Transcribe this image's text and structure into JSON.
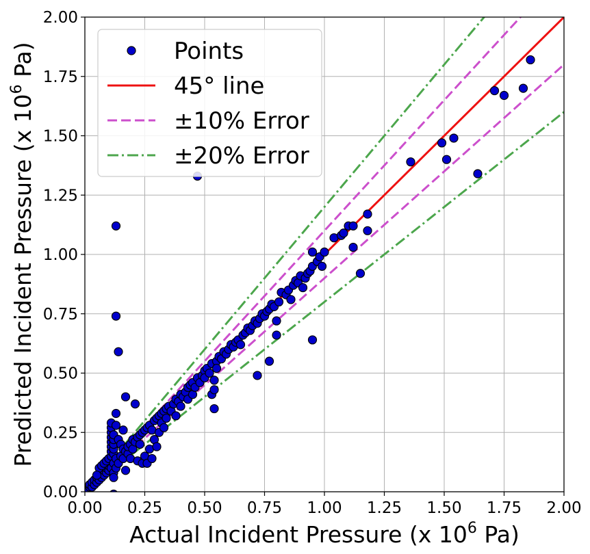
{
  "chart_data": {
    "type": "scatter",
    "title": "",
    "xlabel": "Actual Incident Pressure (x 10",
    "xlabel_exp": "6",
    "xlabel_unit": " Pa)",
    "ylabel": "Predicted Incident Pressure (x 10",
    "ylabel_exp": "6",
    "ylabel_unit": " Pa)",
    "xlim": [
      0,
      2
    ],
    "ylim": [
      0,
      2
    ],
    "grid": true,
    "legend_position": "top-left",
    "xticks": [
      "0.00",
      "0.25",
      "0.50",
      "0.75",
      "1.00",
      "1.25",
      "1.50",
      "1.75",
      "2.00"
    ],
    "yticks": [
      "0.00",
      "0.25",
      "0.50",
      "0.75",
      "1.00",
      "1.25",
      "1.50",
      "1.75",
      "2.00"
    ],
    "legend": [
      {
        "label": "Points",
        "kind": "marker",
        "color": "#0000cc"
      },
      {
        "label": "45° line",
        "kind": "solid",
        "color": "#ee1111"
      },
      {
        "label": "±10% Error",
        "kind": "dashed",
        "color": "#cc4fcc"
      },
      {
        "label": "±20% Error",
        "kind": "dashdot",
        "color": "#4ca64c"
      }
    ],
    "reference_lines": [
      {
        "name": "45° line",
        "slope": 1.0,
        "color": "#ee1111",
        "style": "solid"
      },
      {
        "name": "±10% Error",
        "slope": 1.1,
        "color": "#cc4fcc",
        "style": "dashed"
      },
      {
        "name": "±10% Error",
        "slope": 0.9,
        "color": "#cc4fcc",
        "style": "dashed"
      },
      {
        "name": "±20% Error",
        "slope": 1.2,
        "color": "#4ca64c",
        "style": "dashdot"
      },
      {
        "name": "±20% Error",
        "slope": 0.8,
        "color": "#4ca64c",
        "style": "dashdot"
      }
    ],
    "points": [
      [
        0.01,
        0.01
      ],
      [
        0.02,
        0.02
      ],
      [
        0.02,
        0.03
      ],
      [
        0.03,
        0.02
      ],
      [
        0.03,
        0.04
      ],
      [
        0.04,
        0.03
      ],
      [
        0.04,
        0.05
      ],
      [
        0.05,
        0.04
      ],
      [
        0.05,
        0.06
      ],
      [
        0.06,
        0.05
      ],
      [
        0.06,
        0.07
      ],
      [
        0.07,
        0.06
      ],
      [
        0.07,
        0.08
      ],
      [
        0.08,
        0.07
      ],
      [
        0.08,
        0.09
      ],
      [
        0.09,
        0.08
      ],
      [
        0.09,
        0.1
      ],
      [
        0.1,
        0.09
      ],
      [
        0.1,
        0.11
      ],
      [
        0.11,
        0.1
      ],
      [
        0.06,
        0.1
      ],
      [
        0.07,
        0.11
      ],
      [
        0.08,
        0.12
      ],
      [
        0.05,
        0.07
      ],
      [
        0.09,
        0.13
      ],
      [
        0.1,
        0.14
      ],
      [
        0.11,
        0.15
      ],
      [
        0.11,
        0.17
      ],
      [
        0.11,
        0.19
      ],
      [
        0.11,
        0.21
      ],
      [
        0.11,
        0.23
      ],
      [
        0.11,
        0.25
      ],
      [
        0.11,
        0.27
      ],
      [
        0.11,
        0.29
      ],
      [
        0.12,
        0.16
      ],
      [
        0.12,
        0.18
      ],
      [
        0.12,
        0.2
      ],
      [
        0.12,
        0.22
      ],
      [
        0.12,
        0.24
      ],
      [
        0.12,
        0.12
      ],
      [
        0.12,
        0.08
      ],
      [
        0.12,
        0.06
      ],
      [
        0.13,
        0.33
      ],
      [
        0.13,
        0.28
      ],
      [
        0.13,
        0.14
      ],
      [
        0.13,
        0.1
      ],
      [
        0.13,
        1.12
      ],
      [
        0.13,
        0.74
      ],
      [
        0.14,
        0.59
      ],
      [
        0.12,
        -0.01
      ],
      [
        0.14,
        0.22
      ],
      [
        0.14,
        0.12
      ],
      [
        0.15,
        0.15
      ],
      [
        0.15,
        0.2
      ],
      [
        0.16,
        0.26
      ],
      [
        0.16,
        0.18
      ],
      [
        0.16,
        0.14
      ],
      [
        0.17,
        0.4
      ],
      [
        0.17,
        0.09
      ],
      [
        0.17,
        0.17
      ],
      [
        0.18,
        0.16
      ],
      [
        0.18,
        0.19
      ],
      [
        0.19,
        0.2
      ],
      [
        0.19,
        0.14
      ],
      [
        0.2,
        0.22
      ],
      [
        0.2,
        0.18
      ],
      [
        0.21,
        0.37
      ],
      [
        0.21,
        0.21
      ],
      [
        0.22,
        0.13
      ],
      [
        0.22,
        0.23
      ],
      [
        0.23,
        0.2
      ],
      [
        0.23,
        0.24
      ],
      [
        0.24,
        0.12
      ],
      [
        0.24,
        0.25
      ],
      [
        0.25,
        0.26
      ],
      [
        0.25,
        0.15
      ],
      [
        0.26,
        0.12
      ],
      [
        0.26,
        0.27
      ],
      [
        0.27,
        0.18
      ],
      [
        0.27,
        0.28
      ],
      [
        0.28,
        0.14
      ],
      [
        0.28,
        0.26
      ],
      [
        0.29,
        0.3
      ],
      [
        0.29,
        0.22
      ],
      [
        0.3,
        0.19
      ],
      [
        0.3,
        0.31
      ],
      [
        0.31,
        0.25
      ],
      [
        0.31,
        0.32
      ],
      [
        0.32,
        0.29
      ],
      [
        0.32,
        0.33
      ],
      [
        0.33,
        0.34
      ],
      [
        0.33,
        0.27
      ],
      [
        0.34,
        0.35
      ],
      [
        0.34,
        0.31
      ],
      [
        0.35,
        0.36
      ],
      [
        0.36,
        0.34
      ],
      [
        0.37,
        0.37
      ],
      [
        0.38,
        0.32
      ],
      [
        0.38,
        0.39
      ],
      [
        0.39,
        0.38
      ],
      [
        0.4,
        0.41
      ],
      [
        0.4,
        0.36
      ],
      [
        0.41,
        0.4
      ],
      [
        0.42,
        0.42
      ],
      [
        0.43,
        0.39
      ],
      [
        0.43,
        0.44
      ],
      [
        0.44,
        0.45
      ],
      [
        0.45,
        0.41
      ],
      [
        0.45,
        0.46
      ],
      [
        0.46,
        0.44
      ],
      [
        0.47,
        0.48
      ],
      [
        0.47,
        1.33
      ],
      [
        0.48,
        0.46
      ],
      [
        0.49,
        0.49
      ],
      [
        0.5,
        0.51
      ],
      [
        0.5,
        0.48
      ],
      [
        0.51,
        0.52
      ],
      [
        0.52,
        0.5
      ],
      [
        0.53,
        0.41
      ],
      [
        0.53,
        0.54
      ],
      [
        0.54,
        0.43
      ],
      [
        0.54,
        0.35
      ],
      [
        0.54,
        0.47
      ],
      [
        0.55,
        0.55
      ],
      [
        0.55,
        0.52
      ],
      [
        0.56,
        0.57
      ],
      [
        0.57,
        0.56
      ],
      [
        0.58,
        0.59
      ],
      [
        0.59,
        0.58
      ],
      [
        0.6,
        0.6
      ],
      [
        0.61,
        0.62
      ],
      [
        0.62,
        0.61
      ],
      [
        0.63,
        0.63
      ],
      [
        0.64,
        0.64
      ],
      [
        0.65,
        0.62
      ],
      [
        0.66,
        0.66
      ],
      [
        0.67,
        0.67
      ],
      [
        0.68,
        0.69
      ],
      [
        0.69,
        0.68
      ],
      [
        0.7,
        0.7
      ],
      [
        0.71,
        0.72
      ],
      [
        0.72,
        0.49
      ],
      [
        0.72,
        0.71
      ],
      [
        0.73,
        0.73
      ],
      [
        0.74,
        0.75
      ],
      [
        0.75,
        0.74
      ],
      [
        0.76,
        0.76
      ],
      [
        0.77,
        0.55
      ],
      [
        0.77,
        0.77
      ],
      [
        0.78,
        0.79
      ],
      [
        0.79,
        0.78
      ],
      [
        0.8,
        0.66
      ],
      [
        0.8,
        0.72
      ],
      [
        0.81,
        0.8
      ],
      [
        0.82,
        0.84
      ],
      [
        0.84,
        0.83
      ],
      [
        0.85,
        0.85
      ],
      [
        0.86,
        0.81
      ],
      [
        0.87,
        0.87
      ],
      [
        0.88,
        0.89
      ],
      [
        0.89,
        0.88
      ],
      [
        0.9,
        0.91
      ],
      [
        0.91,
        0.86
      ],
      [
        0.92,
        0.9
      ],
      [
        0.93,
        0.92
      ],
      [
        0.94,
        0.93
      ],
      [
        0.95,
        0.95
      ],
      [
        0.95,
        0.64
      ],
      [
        0.95,
        1.01
      ],
      [
        0.97,
        0.97
      ],
      [
        0.98,
        0.99
      ],
      [
        0.99,
        0.95
      ],
      [
        1.0,
        1.01
      ],
      [
        1.04,
        1.07
      ],
      [
        1.07,
        1.08
      ],
      [
        1.08,
        1.09
      ],
      [
        1.1,
        1.12
      ],
      [
        1.12,
        1.12
      ],
      [
        1.12,
        1.03
      ],
      [
        1.15,
        0.92
      ],
      [
        1.18,
        1.17
      ],
      [
        1.18,
        1.1
      ],
      [
        1.36,
        1.39
      ],
      [
        1.49,
        1.47
      ],
      [
        1.51,
        1.4
      ],
      [
        1.54,
        1.49
      ],
      [
        1.64,
        1.34
      ],
      [
        1.71,
        1.69
      ],
      [
        1.75,
        1.67
      ],
      [
        1.83,
        1.7
      ],
      [
        1.86,
        1.82
      ]
    ]
  }
}
